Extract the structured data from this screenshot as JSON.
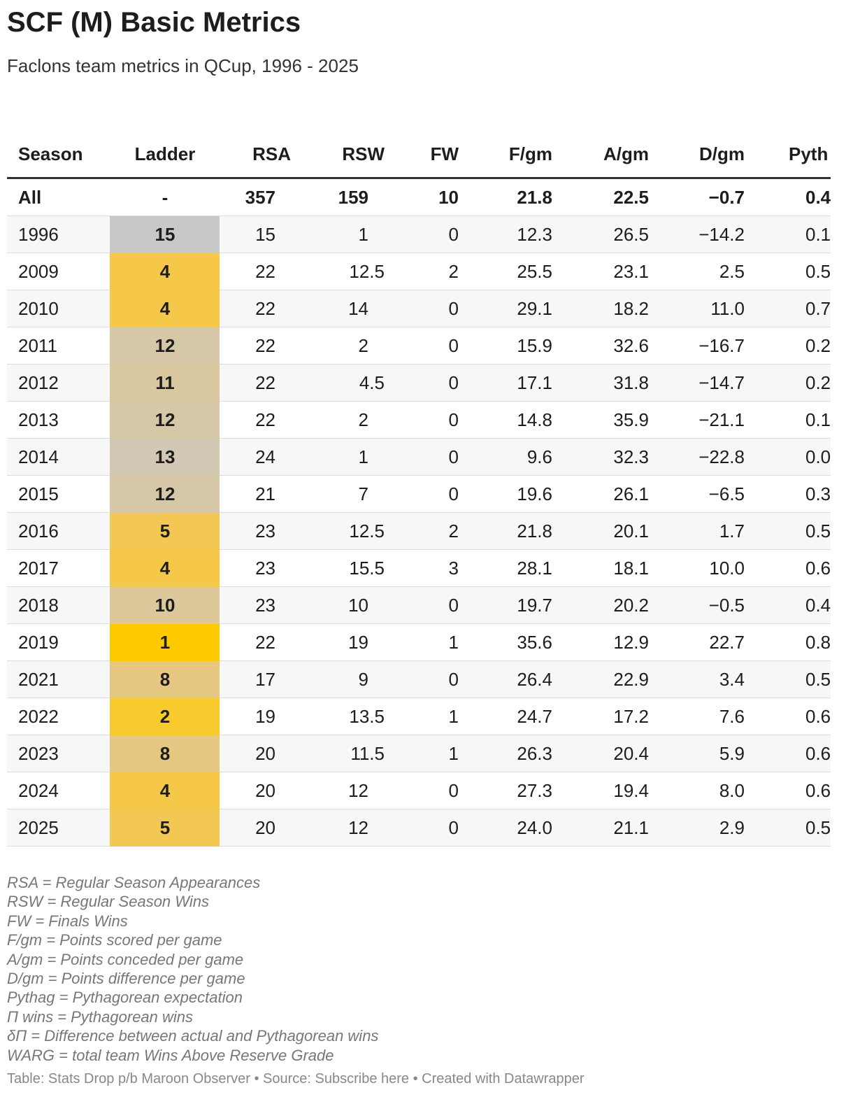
{
  "title": "SCF (M) Basic Metrics",
  "subtitle": "Faclons team metrics in QCup, 1996 - 2025",
  "table": {
    "headers": [
      "Season",
      "Ladder",
      "RSA",
      "RSW",
      "FW",
      "F/gm",
      "A/gm",
      "D/gm",
      "Pyth"
    ],
    "total_row": [
      "All",
      "-",
      "357",
      "159",
      "10",
      "21.8",
      "22.5",
      "−0.7",
      "0.4"
    ],
    "rows": [
      [
        "1996",
        "15",
        "15",
        "1",
        "0",
        "12.3",
        "26.5",
        "−14.2",
        "0.1"
      ],
      [
        "2009",
        "4",
        "22",
        "12.5",
        "2",
        "25.5",
        "23.1",
        "2.5",
        "0.5"
      ],
      [
        "2010",
        "4",
        "22",
        "14",
        "0",
        "29.1",
        "18.2",
        "11.0",
        "0.7"
      ],
      [
        "2011",
        "12",
        "22",
        "2",
        "0",
        "15.9",
        "32.6",
        "−16.7",
        "0.2"
      ],
      [
        "2012",
        "11",
        "22",
        "4.5",
        "0",
        "17.1",
        "31.8",
        "−14.7",
        "0.2"
      ],
      [
        "2013",
        "12",
        "22",
        "2",
        "0",
        "14.8",
        "35.9",
        "−21.1",
        "0.1"
      ],
      [
        "2014",
        "13",
        "24",
        "1",
        "0",
        "9.6",
        "32.3",
        "−22.8",
        "0.0"
      ],
      [
        "2015",
        "12",
        "21",
        "7",
        "0",
        "19.6",
        "26.1",
        "−6.5",
        "0.3"
      ],
      [
        "2016",
        "5",
        "23",
        "12.5",
        "2",
        "21.8",
        "20.1",
        "1.7",
        "0.5"
      ],
      [
        "2017",
        "4",
        "23",
        "15.5",
        "3",
        "28.1",
        "18.1",
        "10.0",
        "0.6"
      ],
      [
        "2018",
        "10",
        "23",
        "10",
        "0",
        "19.7",
        "20.2",
        "−0.5",
        "0.4"
      ],
      [
        "2019",
        "1",
        "22",
        "19",
        "1",
        "35.6",
        "12.9",
        "22.7",
        "0.8"
      ],
      [
        "2021",
        "8",
        "17",
        "9",
        "0",
        "26.4",
        "22.9",
        "3.4",
        "0.5"
      ],
      [
        "2022",
        "2",
        "19",
        "13.5",
        "1",
        "24.7",
        "17.2",
        "7.6",
        "0.6"
      ],
      [
        "2023",
        "8",
        "20",
        "11.5",
        "1",
        "26.3",
        "20.4",
        "5.9",
        "0.6"
      ],
      [
        "2024",
        "4",
        "20",
        "12",
        "0",
        "27.3",
        "19.4",
        "8.0",
        "0.6"
      ],
      [
        "2025",
        "5",
        "20",
        "12",
        "0",
        "24.0",
        "21.1",
        "2.9",
        "0.5"
      ]
    ],
    "ladder_colors": [
      "#c8c8c8",
      "#f5c84a",
      "#f5c84a",
      "#d6c8a6",
      "#d9c7a0",
      "#d6c8a6",
      "#d2c8b4",
      "#d6c8a6",
      "#f3c852",
      "#f5c84a",
      "#dcc89a",
      "#fdca00",
      "#e6c781",
      "#f8ca2e",
      "#e6c781",
      "#f5c84a",
      "#f3c852"
    ]
  },
  "notes": [
    "RSA = Regular Season Appearances",
    "RSW = Regular Season Wins",
    "FW = Finals Wins",
    "F/gm = Points scored per game",
    "A/gm = Points conceded per game",
    "D/gm = Points difference per game",
    "Pythag = Pythagorean expectation",
    "Π wins = Pythagorean wins",
    "δΠ = Difference between actual and Pythagorean wins",
    "WARG = total team Wins Above Reserve Grade"
  ],
  "footer": "Table: Stats Drop p/b Maroon Observer • Source: Subscribe here • Created with Datawrapper"
}
